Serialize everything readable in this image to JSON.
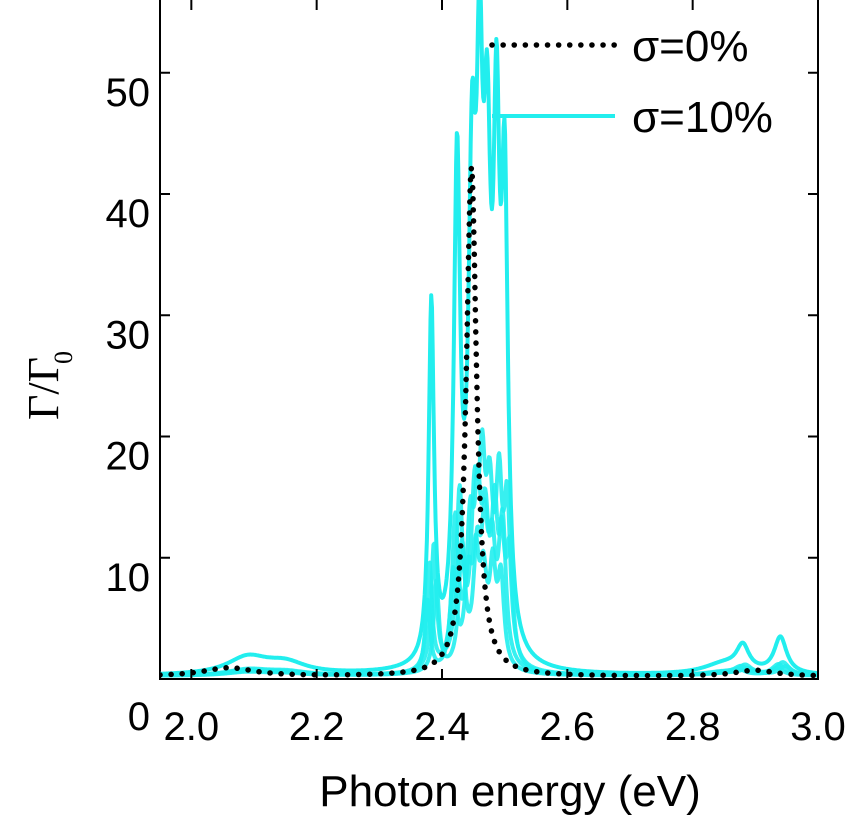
{
  "chart_data": {
    "type": "line",
    "title": "",
    "xlabel": "Photon energy (eV)",
    "ylabel_main": "Γ/Γ",
    "ylabel_sub": "0",
    "xlim": [
      1.95,
      3.0
    ],
    "ylim": [
      0,
      56
    ],
    "x_ticks": [
      2.0,
      2.2,
      2.4,
      2.6,
      2.8,
      3.0
    ],
    "x_tick_labels": [
      "2.0",
      "2.2",
      "2.4",
      "2.6",
      "2.8",
      "3.0"
    ],
    "y_ticks": [
      10,
      20,
      30,
      40,
      50
    ],
    "y_tick_labels": [
      "10",
      "20",
      "30",
      "40",
      "50"
    ],
    "y_zero_label": "0",
    "grid": false,
    "legend_position": "top-right",
    "legend": [
      {
        "label": "σ=0%",
        "style": "dotted",
        "color": "#000000"
      },
      {
        "label": "σ=10%",
        "style": "solid",
        "color": "#22eeee"
      }
    ],
    "series": [
      {
        "name": "σ=0%",
        "color": "#000000",
        "style": "dotted",
        "peaks": [
          {
            "center": 2.447,
            "height": 42.0,
            "width": 0.01
          },
          {
            "center": 2.06,
            "height": 0.7,
            "width": 0.05
          },
          {
            "center": 2.9,
            "height": 0.5,
            "width": 0.04
          }
        ],
        "baseline": 0.2
      },
      {
        "name": "σ=10%",
        "color": "#22eeee",
        "style": "solid",
        "peaks": [
          {
            "center": 2.383,
            "height": 29.5,
            "width": 0.005
          },
          {
            "center": 2.424,
            "height": 39.5,
            "width": 0.006
          },
          {
            "center": 2.448,
            "height": 35.0,
            "width": 0.007
          },
          {
            "center": 2.46,
            "height": 37.0,
            "width": 0.006
          },
          {
            "center": 2.472,
            "height": 34.0,
            "width": 0.007
          },
          {
            "center": 2.487,
            "height": 37.0,
            "width": 0.006
          },
          {
            "center": 2.5,
            "height": 35.5,
            "width": 0.006
          },
          {
            "center": 2.09,
            "height": 1.4,
            "width": 0.04
          },
          {
            "center": 2.15,
            "height": 0.9,
            "width": 0.04
          },
          {
            "center": 2.88,
            "height": 2.0,
            "width": 0.012
          },
          {
            "center": 2.94,
            "height": 3.0,
            "width": 0.012
          },
          {
            "center": 2.85,
            "height": 0.9,
            "width": 0.04
          }
        ],
        "baseline": 0.25,
        "replicas": 5
      }
    ]
  }
}
